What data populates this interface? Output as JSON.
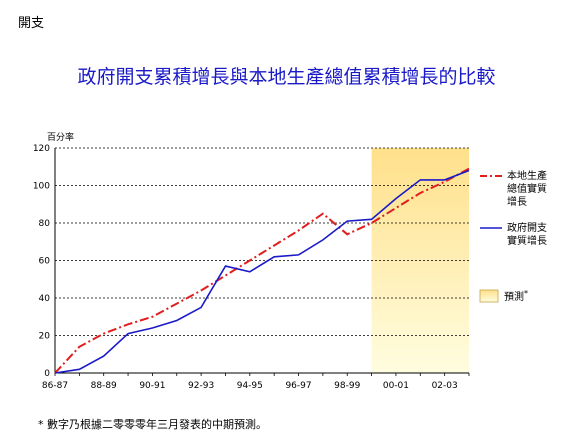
{
  "section_title": "開支",
  "chart_data": {
    "type": "line",
    "title": "政府開支累積增長與本地生產總值累積增長的比較",
    "ylabel": "百分率",
    "xlabel": "",
    "ylim": [
      0,
      120
    ],
    "yticks": [
      0,
      20,
      40,
      60,
      80,
      100,
      120
    ],
    "x_tick_labels": [
      "86-87",
      "88-89",
      "90-91",
      "92-93",
      "94-95",
      "96-97",
      "98-99",
      "00-01",
      "02-03"
    ],
    "x_categories": [
      "86-87",
      "87-88",
      "88-89",
      "89-90",
      "90-91",
      "91-92",
      "92-93",
      "93-94",
      "94-95",
      "95-96",
      "96-97",
      "97-98",
      "98-99",
      "99-00",
      "00-01",
      "01-02",
      "02-03",
      "03-04"
    ],
    "grid": "horizontal-dashed",
    "forecast_shade_start": "99-00",
    "series": [
      {
        "name": "本地生產總值實質增長",
        "color": "#e01e1e",
        "style": "dash-dot",
        "values": [
          0,
          14,
          21,
          26,
          30,
          37,
          44,
          52,
          60,
          68,
          76,
          85,
          74,
          80,
          88,
          96,
          102,
          109
        ]
      },
      {
        "name": "政府開支實質增長",
        "color": "#1a1ac8",
        "style": "solid",
        "values": [
          0,
          2,
          9,
          21,
          24,
          28,
          35,
          57,
          54,
          62,
          63,
          71,
          81,
          82,
          93,
          103,
          103,
          108
        ]
      }
    ],
    "forecast_legend_label": "預測",
    "forecast_legend_mark": "*",
    "footnote": "* 數字乃根據二零零零年三月發表的中期預測。"
  },
  "colors": {
    "title": "#1a1ac8",
    "forecast_shade_top": "#ffe08a",
    "forecast_shade_bottom": "#fffde0"
  }
}
